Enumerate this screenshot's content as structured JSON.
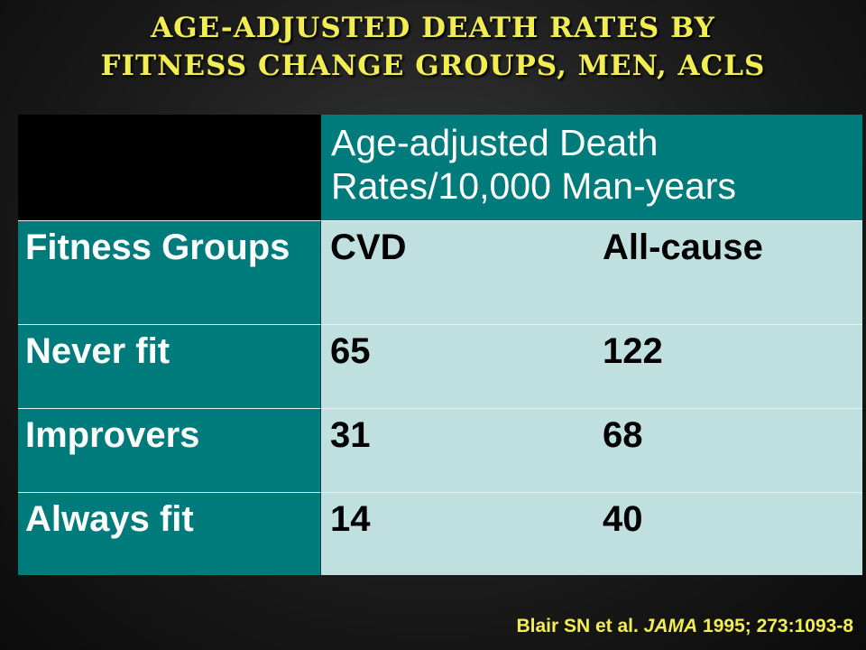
{
  "slide": {
    "title_line1": "AGE-ADJUSTED DEATH RATES BY",
    "title_line2": "FITNESS CHANGE GROUPS, MEN, ACLS"
  },
  "table": {
    "header": "Age-adjusted Death Rates/10,000 Man-years",
    "col_label_header": "Fitness Groups",
    "columns": [
      "CVD",
      "All-cause"
    ],
    "rows": [
      {
        "label": "Never fit",
        "cvd": "65",
        "all_cause": "122"
      },
      {
        "label": "Improvers",
        "cvd": "31",
        "all_cause": "68"
      },
      {
        "label": "Always fit",
        "cvd": "14",
        "all_cause": "40"
      }
    ]
  },
  "citation": {
    "authors": "Blair SN et al.",
    "journal": "JAMA",
    "details": "1995; 273:1093-8"
  },
  "colors": {
    "title": "#f2ee52",
    "teal": "#007b7b",
    "light_teal": "#bfe0df",
    "background": "#1c1c1c"
  }
}
